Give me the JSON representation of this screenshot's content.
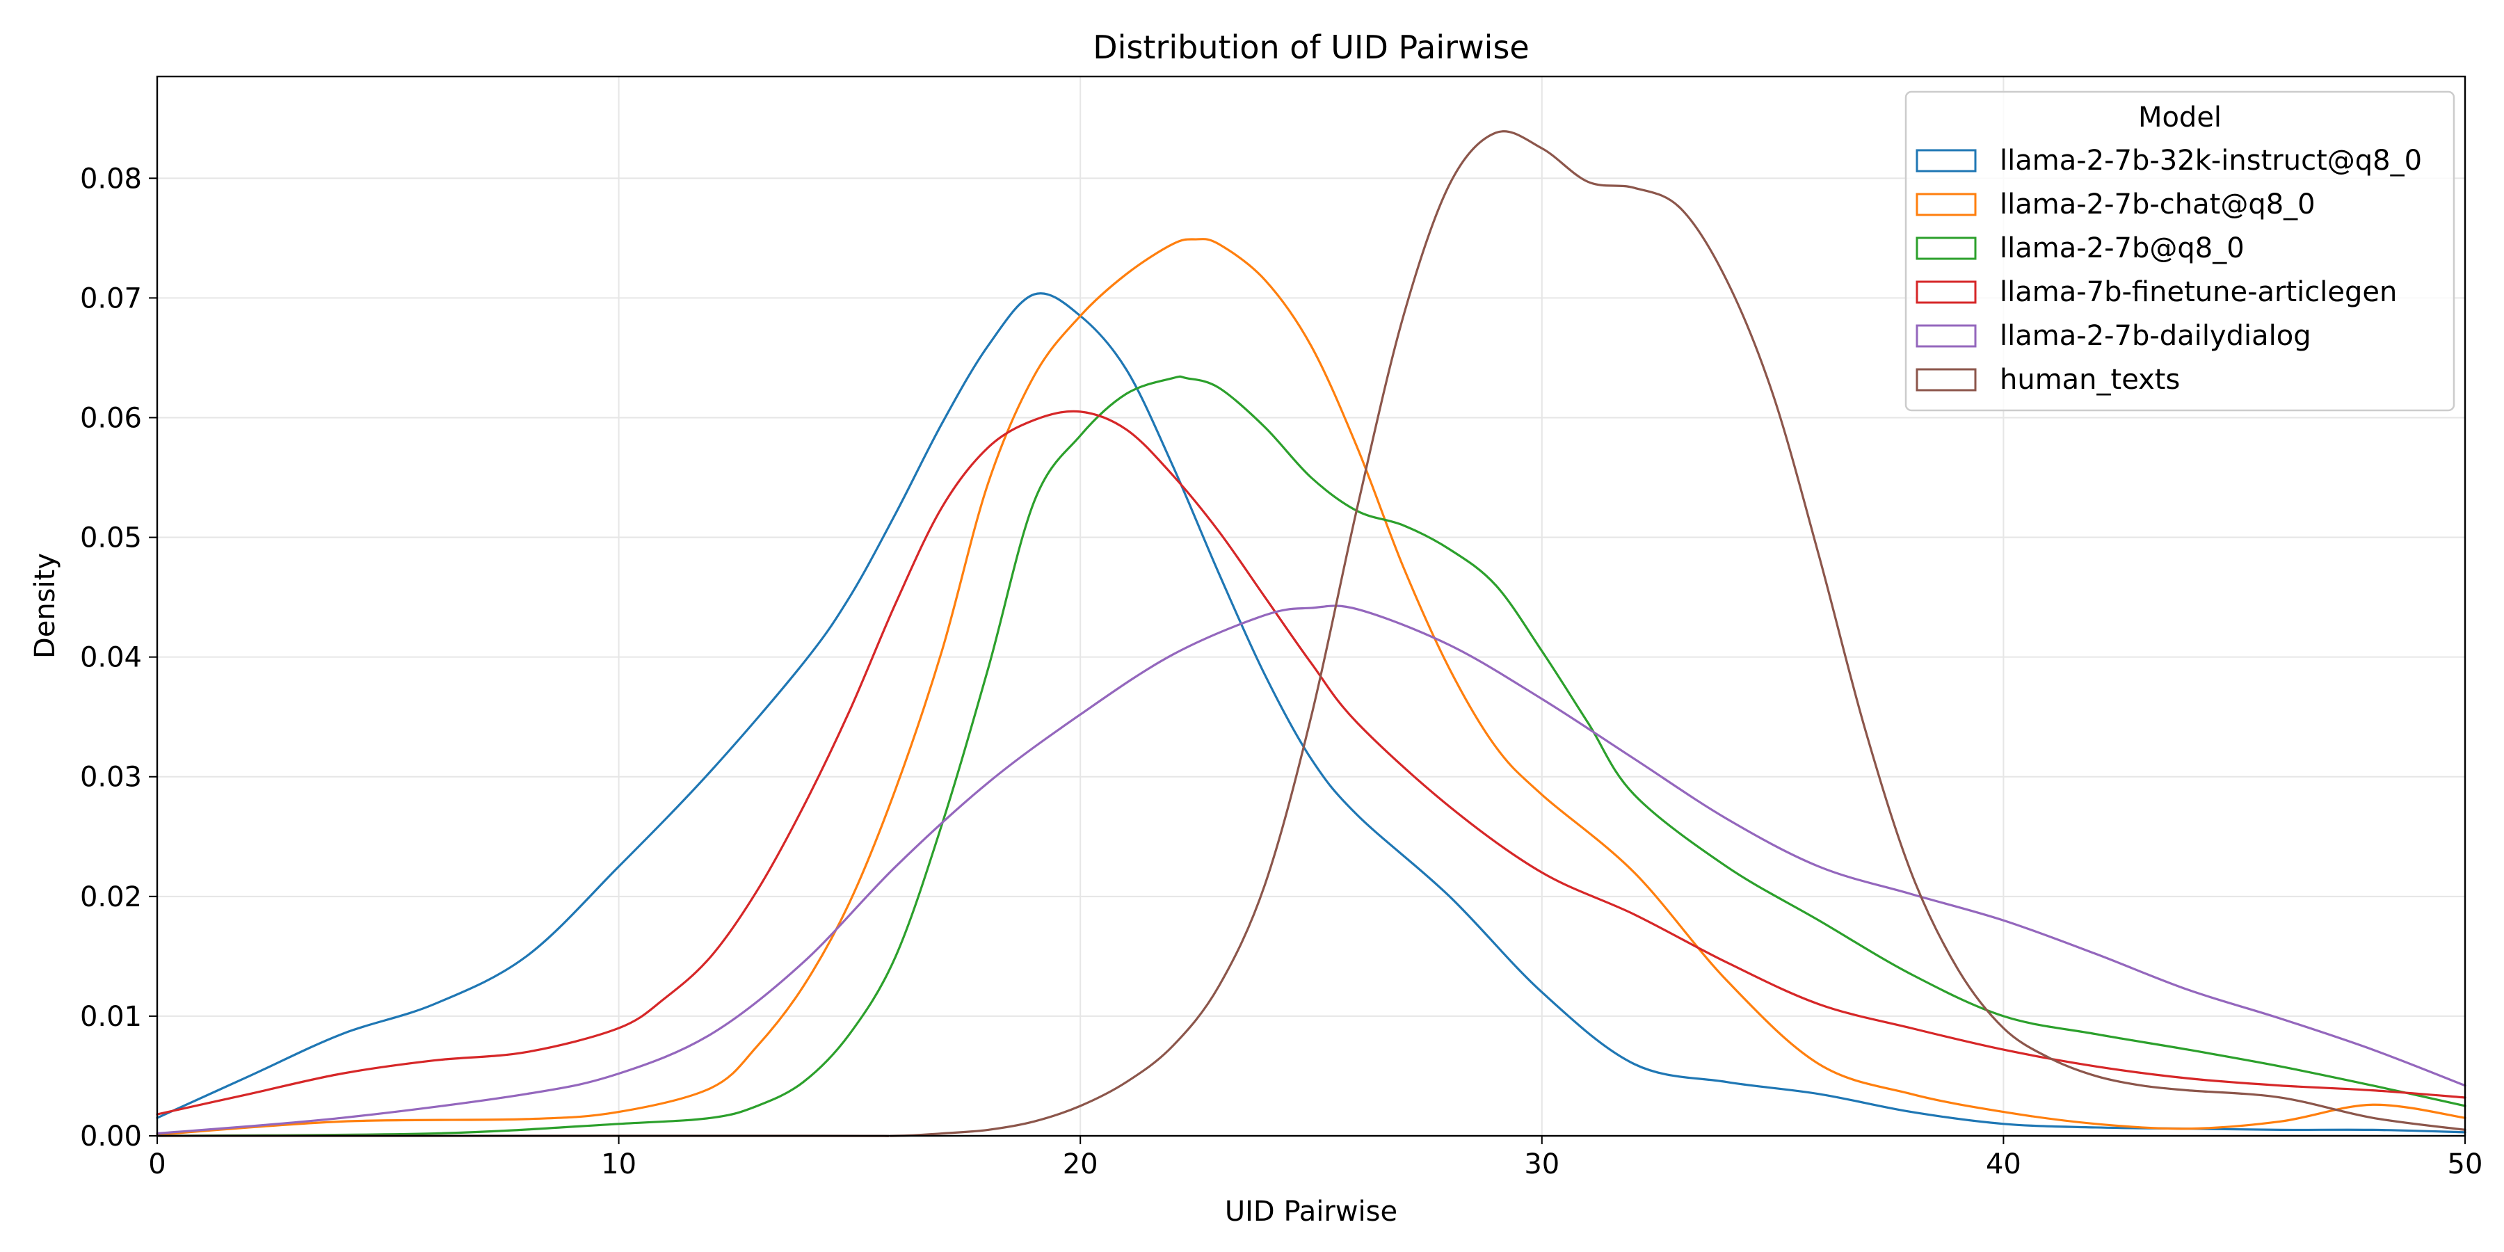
{
  "chart_data": {
    "type": "line",
    "title": "Distribution of UID Pairwise",
    "xlabel": "UID Pairwise",
    "ylabel": "Density",
    "xlim": [
      0,
      50
    ],
    "ylim": [
      0,
      0.0885
    ],
    "xticks": [
      0,
      10,
      20,
      30,
      40,
      50
    ],
    "yticks": [
      0.0,
      0.01,
      0.02,
      0.03,
      0.04,
      0.05,
      0.06,
      0.07,
      0.08
    ],
    "ytick_labels": [
      "0.00",
      "0.01",
      "0.02",
      "0.03",
      "0.04",
      "0.05",
      "0.06",
      "0.07",
      "0.08"
    ],
    "grid": true,
    "legend": {
      "title": "Model",
      "placement": "top-right"
    },
    "series": [
      {
        "name": "llama-2-7b-32k-instruct@q8_0",
        "color": "#1f77b4",
        "x": [
          0,
          2,
          4,
          6,
          8,
          10,
          12,
          14,
          15,
          16,
          17,
          18,
          19,
          20,
          21,
          22,
          23,
          24,
          25,
          26,
          28,
          30,
          32,
          34,
          36,
          38,
          40,
          42,
          44,
          46,
          48,
          50
        ],
        "y": [
          0.0015,
          0.005,
          0.0085,
          0.011,
          0.015,
          0.0225,
          0.0305,
          0.0395,
          0.045,
          0.052,
          0.0595,
          0.066,
          0.0703,
          0.0685,
          0.064,
          0.056,
          0.047,
          0.0385,
          0.0315,
          0.0268,
          0.02,
          0.012,
          0.006,
          0.0045,
          0.0035,
          0.002,
          0.001,
          0.0007,
          0.0006,
          0.0005,
          0.0005,
          0.0003
        ]
      },
      {
        "name": "llama-2-7b-chat@q8_0",
        "color": "#ff7f0e",
        "x": [
          0,
          4,
          8,
          10,
          12,
          13,
          14,
          15,
          16,
          17,
          18,
          19,
          20,
          21,
          22,
          22.5,
          23,
          24,
          25,
          26,
          27,
          28,
          29,
          30,
          32,
          34,
          36,
          38,
          40,
          42,
          44,
          46,
          48,
          50
        ],
        "y": [
          0.0001,
          0.0012,
          0.0014,
          0.002,
          0.004,
          0.0075,
          0.0125,
          0.0195,
          0.029,
          0.0405,
          0.0545,
          0.0635,
          0.0685,
          0.072,
          0.0745,
          0.0749,
          0.0745,
          0.0715,
          0.066,
          0.0575,
          0.0475,
          0.039,
          0.0325,
          0.0285,
          0.022,
          0.013,
          0.006,
          0.0035,
          0.002,
          0.001,
          0.0006,
          0.0012,
          0.0026,
          0.0015
        ]
      },
      {
        "name": "llama-2-7b@q8_0",
        "color": "#2ca02c",
        "x": [
          0,
          6,
          10,
          12,
          13,
          14,
          15,
          16,
          17,
          18,
          19,
          20,
          21,
          22,
          22.3,
          23,
          24,
          25,
          26,
          27,
          28,
          29,
          30,
          31,
          32,
          34,
          36,
          38,
          40,
          42,
          44,
          46,
          48,
          50
        ],
        "y": [
          0.0,
          0.0002,
          0.001,
          0.0015,
          0.0025,
          0.0045,
          0.0085,
          0.015,
          0.026,
          0.039,
          0.053,
          0.0585,
          0.062,
          0.0633,
          0.0633,
          0.0625,
          0.0592,
          0.055,
          0.0522,
          0.051,
          0.049,
          0.046,
          0.0405,
          0.0345,
          0.0285,
          0.0225,
          0.018,
          0.0135,
          0.01,
          0.0085,
          0.0072,
          0.0058,
          0.0042,
          0.0025
        ]
      },
      {
        "name": "llama-7b-finetune-articlegen",
        "color": "#d62728",
        "x": [
          0,
          2,
          4,
          6,
          8,
          10,
          11,
          12,
          13,
          14,
          15,
          16,
          17,
          18,
          19,
          20,
          21,
          22,
          23,
          24,
          25,
          26,
          28,
          30,
          32,
          34,
          36,
          38,
          40,
          42,
          44,
          46,
          48,
          50
        ],
        "y": [
          0.0018,
          0.0035,
          0.0052,
          0.0063,
          0.007,
          0.009,
          0.0115,
          0.015,
          0.0205,
          0.0275,
          0.0355,
          0.0445,
          0.0525,
          0.0575,
          0.0598,
          0.0605,
          0.059,
          0.0552,
          0.0505,
          0.045,
          0.0395,
          0.0345,
          0.0275,
          0.022,
          0.0185,
          0.0145,
          0.011,
          0.009,
          0.0072,
          0.0058,
          0.0048,
          0.0042,
          0.0038,
          0.0032
        ]
      },
      {
        "name": "llama-2-7b-dailydialog",
        "color": "#9467bd",
        "x": [
          0,
          4,
          8,
          10,
          12,
          14,
          16,
          18,
          20,
          22,
          24,
          25,
          26,
          28,
          30,
          32,
          34,
          36,
          38,
          40,
          42,
          44,
          46,
          48,
          50
        ],
        "y": [
          0.0002,
          0.0015,
          0.0035,
          0.0052,
          0.0085,
          0.0145,
          0.0225,
          0.0295,
          0.0352,
          0.0402,
          0.0435,
          0.0441,
          0.044,
          0.041,
          0.0365,
          0.0315,
          0.0265,
          0.0225,
          0.0202,
          0.018,
          0.0152,
          0.0122,
          0.0098,
          0.0072,
          0.0042
        ]
      },
      {
        "name": "human_texts",
        "color": "#8c564b",
        "x": [
          0,
          14,
          16,
          17,
          18,
          19,
          20,
          21,
          22,
          23,
          24,
          25,
          26,
          27,
          28,
          29,
          30,
          31,
          32,
          33,
          34,
          35,
          36,
          37,
          38,
          39,
          40,
          41,
          42,
          43,
          44,
          46,
          48,
          50
        ],
        "y": [
          0.0,
          0.0,
          0.0,
          0.0002,
          0.0005,
          0.0012,
          0.0025,
          0.0045,
          0.0075,
          0.0125,
          0.021,
          0.035,
          0.0525,
          0.0685,
          0.0795,
          0.0838,
          0.0825,
          0.0797,
          0.0792,
          0.0775,
          0.0715,
          0.062,
          0.0485,
          0.034,
          0.022,
          0.014,
          0.009,
          0.0065,
          0.005,
          0.0042,
          0.0038,
          0.0032,
          0.0015,
          0.0005
        ]
      }
    ]
  }
}
